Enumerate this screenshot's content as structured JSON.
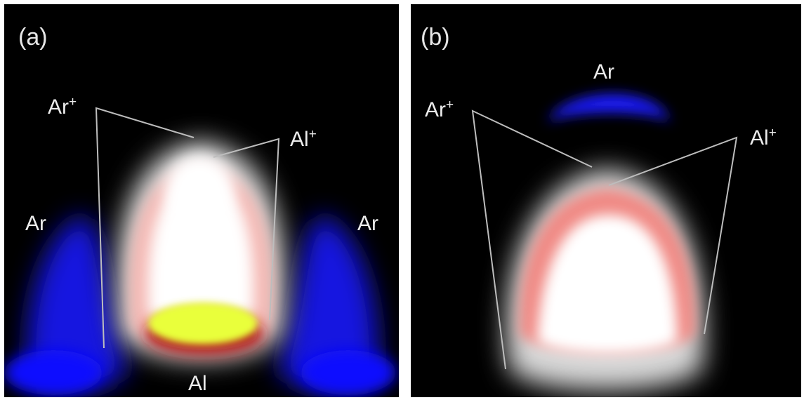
{
  "panels": [
    {
      "letter": "(a)",
      "labels": {
        "ar_ion": "Ar",
        "ar_ion_charge": "+",
        "al_ion": "Al",
        "al_ion_charge": "+",
        "ar_left": "Ar",
        "ar_right": "Ar",
        "al_neutral": "Al"
      }
    },
    {
      "letter": "(b)",
      "labels": {
        "ar_top": "Ar",
        "ar_ion": "Ar",
        "ar_ion_charge": "+",
        "al_ion": "Al",
        "al_ion_charge": "+"
      }
    }
  ],
  "colors": {
    "background": "#000000",
    "ar_neutral": "#1a1aff",
    "ion_plume": "#ffffff",
    "ion_edge": "#ff7a7a",
    "al_neutral": "#e6ff2a"
  }
}
